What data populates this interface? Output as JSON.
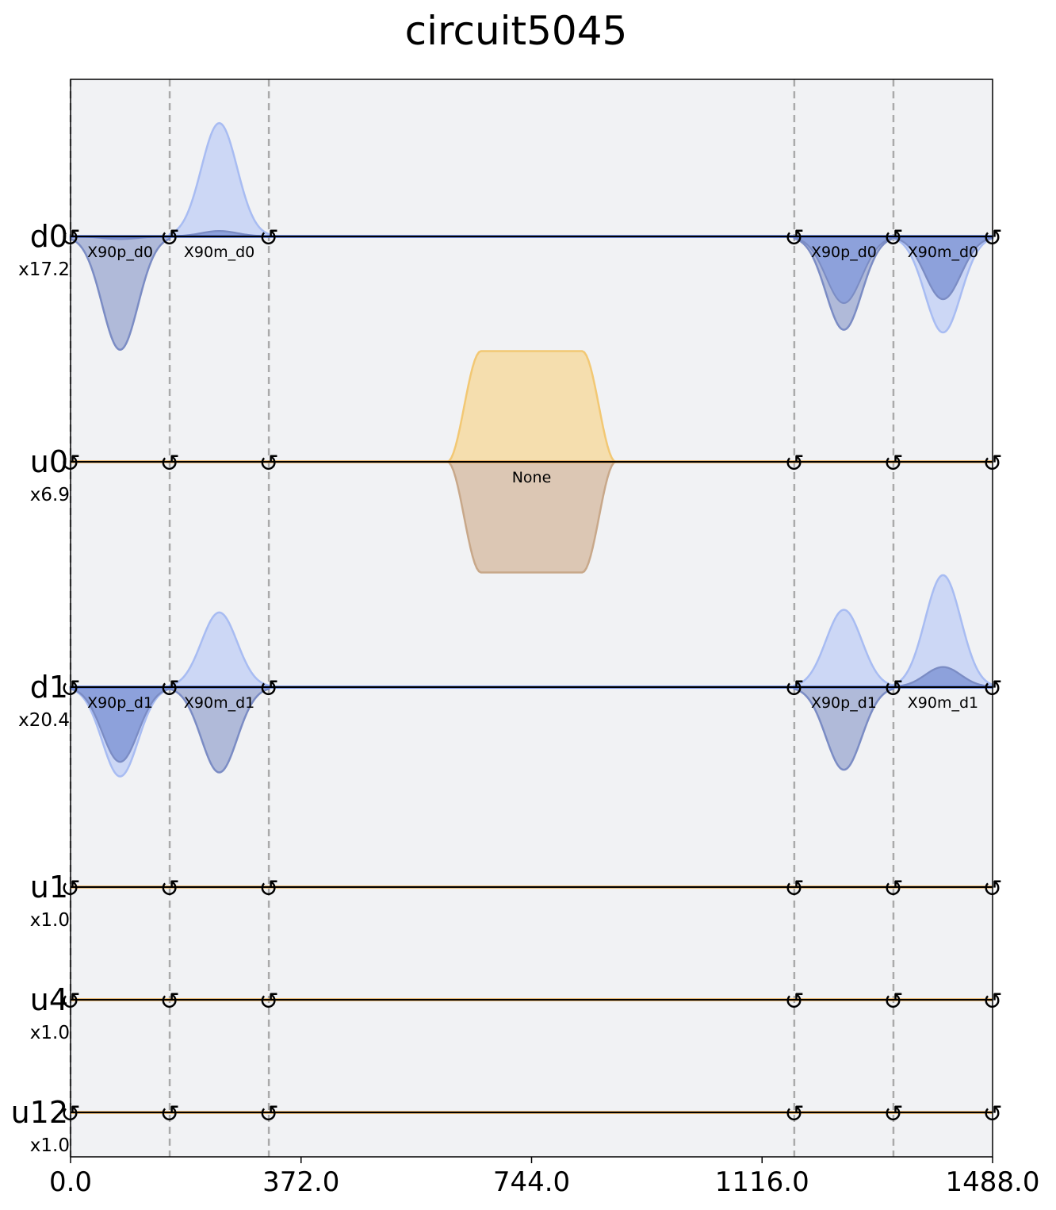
{
  "chart_data": {
    "type": "area",
    "title": "circuit5045",
    "xlabel": "",
    "ylabel": "",
    "xlim": [
      0,
      1488
    ],
    "x_ticks": [
      "0.0",
      "372.0",
      "744.0",
      "1116.0",
      "1488.0"
    ],
    "x_tick_values": [
      0,
      372,
      744,
      1116,
      1488
    ],
    "barriers": [
      0,
      160,
      320,
      1168,
      1328
    ],
    "phase_marks": [
      0,
      160,
      320,
      1168,
      1328,
      1488
    ],
    "phase_symbol": "↺",
    "colors": {
      "background": "#f1f2f4",
      "drive_real": "#c8d4f5",
      "drive_real_edge": "#a8bcf2",
      "drive_imag": "#a5b0d3",
      "drive_imag_edge": "#7b8cc4",
      "drive_overlap": "#8a9fda",
      "control_real": "#f5dca6",
      "control_real_edge": "#f2c874",
      "control_imag": "#d8c0a8",
      "control_imag_edge": "#c8a88a",
      "barrier": "#aaaaaa",
      "baseline": "#000000"
    },
    "channels": [
      {
        "name": "d0",
        "scale": "x17.2",
        "kind": "drive",
        "pulses": [
          {
            "label": "X90p_d0",
            "t0": 0,
            "duration": 160,
            "real": -0.02,
            "imag": -0.85
          },
          {
            "label": "X90m_d0",
            "t0": 160,
            "duration": 160,
            "real": 0.85,
            "imag": 0.04
          },
          {
            "label": "X90p_d0",
            "t0": 1168,
            "duration": 160,
            "real": -0.5,
            "imag": -0.7
          },
          {
            "label": "X90m_d0",
            "t0": 1328,
            "duration": 160,
            "real": -0.72,
            "imag": -0.47
          }
        ]
      },
      {
        "name": "u0",
        "scale": "x6.9",
        "kind": "control",
        "pulses": [
          {
            "label": "None",
            "t0": 608,
            "duration": 272,
            "real": 0.83,
            "imag": -0.83
          }
        ]
      },
      {
        "name": "d1",
        "scale": "x20.4",
        "kind": "drive",
        "pulses": [
          {
            "label": "X90p_d1",
            "t0": 0,
            "duration": 160,
            "real": -0.67,
            "imag": -0.56
          },
          {
            "label": "X90m_d1",
            "t0": 160,
            "duration": 160,
            "real": 0.56,
            "imag": -0.64
          },
          {
            "label": "X90p_d1",
            "t0": 1168,
            "duration": 160,
            "real": 0.58,
            "imag": -0.62
          },
          {
            "label": "X90m_d1",
            "t0": 1328,
            "duration": 160,
            "real": 0.84,
            "imag": 0.15
          }
        ]
      },
      {
        "name": "u1",
        "scale": "x1.0",
        "kind": "control",
        "pulses": []
      },
      {
        "name": "u4",
        "scale": "x1.0",
        "kind": "control",
        "pulses": []
      },
      {
        "name": "u12",
        "scale": "x1.0",
        "kind": "control",
        "pulses": []
      }
    ]
  }
}
